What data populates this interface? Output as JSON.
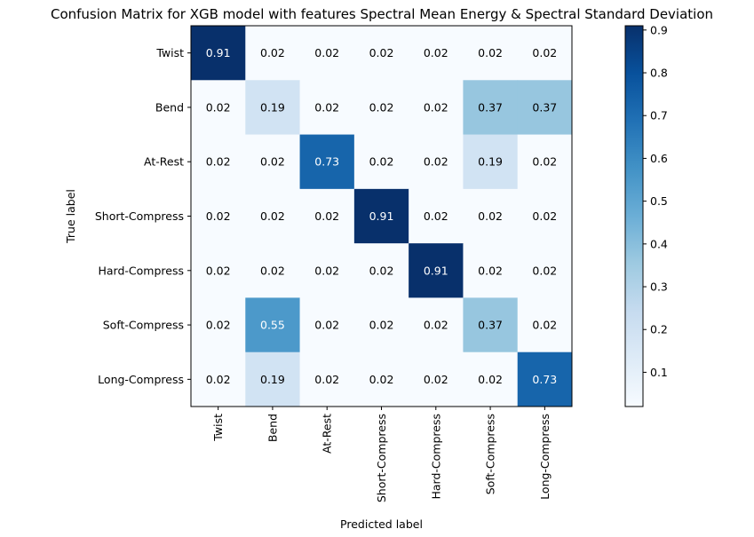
{
  "chart_data": {
    "type": "heatmap",
    "title": "Confusion Matrix for XGB model with features Spectral Mean Energy & Spectral Standard Deviation",
    "xlabel": "Predicted label",
    "ylabel": "True label",
    "x_categories": [
      "Twist",
      "Bend",
      "At-Rest",
      "Short-Compress",
      "Hard-Compress",
      "Soft-Compress",
      "Long-Compress"
    ],
    "y_categories": [
      "Twist",
      "Bend",
      "At-Rest",
      "Short-Compress",
      "Hard-Compress",
      "Soft-Compress",
      "Long-Compress"
    ],
    "values": [
      [
        0.91,
        0.02,
        0.02,
        0.02,
        0.02,
        0.02,
        0.02
      ],
      [
        0.02,
        0.19,
        0.02,
        0.02,
        0.02,
        0.37,
        0.37
      ],
      [
        0.02,
        0.02,
        0.73,
        0.02,
        0.02,
        0.19,
        0.02
      ],
      [
        0.02,
        0.02,
        0.02,
        0.91,
        0.02,
        0.02,
        0.02
      ],
      [
        0.02,
        0.02,
        0.02,
        0.02,
        0.91,
        0.02,
        0.02
      ],
      [
        0.02,
        0.55,
        0.02,
        0.02,
        0.02,
        0.37,
        0.02
      ],
      [
        0.02,
        0.19,
        0.02,
        0.02,
        0.02,
        0.02,
        0.73
      ]
    ],
    "colormap": "Blues",
    "colorbar": {
      "range": [
        0.02,
        0.91
      ],
      "ticks": [
        0.1,
        0.2,
        0.3,
        0.4,
        0.5,
        0.6,
        0.7,
        0.8,
        0.9
      ]
    },
    "grid": false
  }
}
